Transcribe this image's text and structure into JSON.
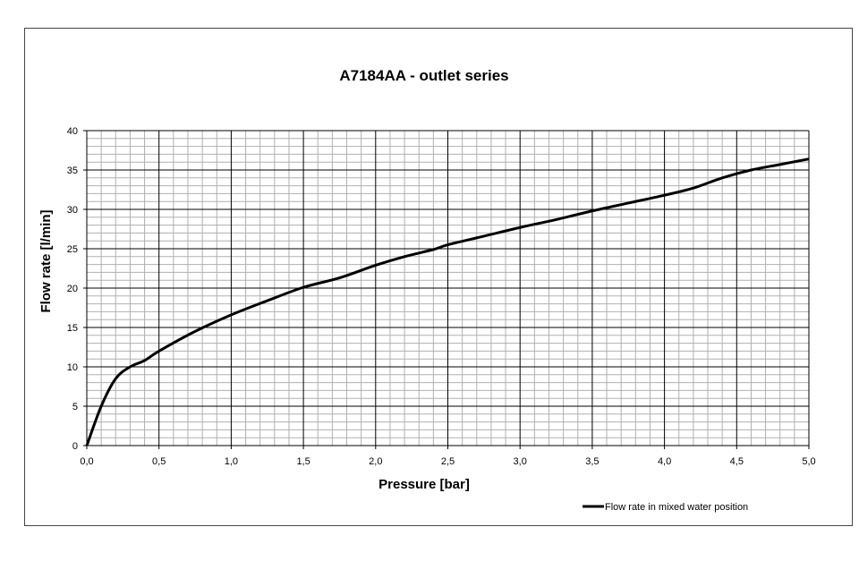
{
  "chart_data": {
    "type": "line",
    "title": "A7184AA - outlet series",
    "xlabel": "Pressure [bar]",
    "ylabel": "Flow rate [l/min]",
    "xlim": [
      0,
      5
    ],
    "ylim": [
      0,
      40
    ],
    "x_ticks": [
      "0,0",
      "0,5",
      "1,0",
      "1,5",
      "2,0",
      "2,5",
      "3,0",
      "3,5",
      "4,0",
      "4,5",
      "5,0"
    ],
    "y_ticks": [
      "0",
      "5",
      "10",
      "15",
      "20",
      "25",
      "30",
      "35",
      "40"
    ],
    "grid": {
      "major": true,
      "minor": true
    },
    "legend_position": "bottom-right",
    "series": [
      {
        "name": "Flow rate in mixed water position",
        "color": "#000000",
        "x": [
          0,
          0.1,
          0.2,
          0.3,
          0.4,
          0.5,
          0.75,
          1.0,
          1.25,
          1.5,
          1.75,
          2.0,
          2.2,
          2.4,
          2.5,
          2.75,
          3.0,
          3.25,
          3.5,
          3.75,
          4.0,
          4.2,
          4.4,
          4.6,
          4.8,
          5.0
        ],
        "y": [
          0,
          5,
          8.5,
          10,
          10.8,
          12,
          14.5,
          16.6,
          18.4,
          20.1,
          21.3,
          22.9,
          24,
          24.9,
          25.5,
          26.6,
          27.7,
          28.7,
          29.8,
          30.8,
          31.8,
          32.7,
          34,
          35,
          35.7,
          36.4
        ]
      }
    ]
  }
}
